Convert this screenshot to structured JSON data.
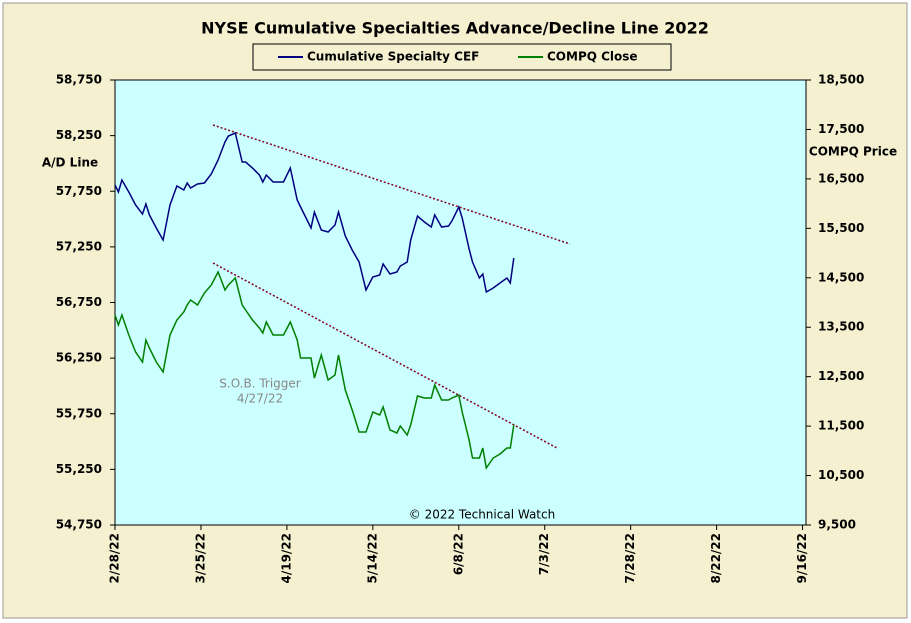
{
  "chart_data": {
    "type": "line",
    "title": "NYSE Cumulative  Specialties  Advance/Decline  Line  2022",
    "y_label": "A/D Line",
    "y2_label": "COMPQ Price",
    "annotations": [
      "S.O.B. Trigger",
      "4/27/22",
      "© 2022 Technical Watch"
    ],
    "x": [
      "2022-02-28",
      "2022-03-01",
      "2022-03-02",
      "2022-03-04",
      "2022-03-06",
      "2022-03-08",
      "2022-03-09",
      "2022-03-10",
      "2022-03-12",
      "2022-03-14",
      "2022-03-16",
      "2022-03-18",
      "2022-03-20",
      "2022-03-21",
      "2022-03-22",
      "2022-03-24",
      "2022-03-26",
      "2022-03-28",
      "2022-03-30",
      "2022-04-01",
      "2022-04-02",
      "2022-04-04",
      "2022-04-06",
      "2022-04-07",
      "2022-04-09",
      "2022-04-11",
      "2022-04-12",
      "2022-04-13",
      "2022-04-15",
      "2022-04-18",
      "2022-04-20",
      "2022-04-22",
      "2022-04-23",
      "2022-04-26",
      "2022-04-27",
      "2022-04-29",
      "2022-05-01",
      "2022-05-03",
      "2022-05-04",
      "2022-05-06",
      "2022-05-08",
      "2022-05-10",
      "2022-05-12",
      "2022-05-14",
      "2022-05-16",
      "2022-05-17",
      "2022-05-19",
      "2022-05-21",
      "2022-05-22",
      "2022-05-24",
      "2022-05-25",
      "2022-05-27",
      "2022-05-29",
      "2022-05-31",
      "2022-06-01",
      "2022-06-03",
      "2022-06-05",
      "2022-06-06",
      "2022-06-08",
      "2022-06-09",
      "2022-06-11",
      "2022-06-12",
      "2022-06-14",
      "2022-06-15",
      "2022-06-16",
      "2022-06-18",
      "2022-06-20",
      "2022-06-22",
      "2022-06-23",
      "2022-06-24"
    ],
    "series": [
      {
        "name": "Cumulative Specialty CEF",
        "color": "#000080",
        "axis": "y",
        "values": [
          57806,
          57743,
          57851,
          57743,
          57626,
          57545,
          57635,
          57537,
          57420,
          57312,
          57626,
          57797,
          57761,
          57824,
          57779,
          57815,
          57824,
          57905,
          58031,
          58193,
          58247,
          58274,
          58013,
          58013,
          57959,
          57896,
          57833,
          57896,
          57833,
          57833,
          57959,
          57671,
          57608,
          57420,
          57563,
          57402,
          57384,
          57447,
          57563,
          57348,
          57222,
          57114,
          56862,
          56979,
          56997,
          57096,
          57006,
          57024,
          57078,
          57114,
          57312,
          57527,
          57474,
          57429,
          57537,
          57429,
          57438,
          57483,
          57608,
          57510,
          57231,
          57114,
          56970,
          57006,
          56844,
          56880,
          56925,
          56970,
          56925,
          57150
        ]
      },
      {
        "name": "COMPQ Close",
        "color": "#008000",
        "axis": "y2",
        "values": [
          13747,
          13545,
          13747,
          13343,
          12999,
          12797,
          13242,
          13080,
          12797,
          12594,
          13343,
          13646,
          13808,
          13949,
          14050,
          13949,
          14192,
          14354,
          14617,
          14253,
          14354,
          14495,
          13949,
          13848,
          13646,
          13484,
          13383,
          13606,
          13343,
          13343,
          13606,
          13242,
          12877,
          12877,
          12473,
          12938,
          12432,
          12534,
          12938,
          12230,
          11826,
          11381,
          11381,
          11785,
          11725,
          11886,
          11421,
          11361,
          11502,
          11320,
          11522,
          12109,
          12068,
          12068,
          12331,
          12028,
          12028,
          12068,
          12129,
          11785,
          11219,
          10855,
          10855,
          11057,
          10653,
          10855,
          10936,
          11057,
          11057,
          11522
        ]
      }
    ],
    "xlim": [
      "2022-02-28",
      "2022-09-17"
    ],
    "xticks": [
      {
        "value": "2022-02-28",
        "label": "2/28/22"
      },
      {
        "value": "2022-03-25",
        "label": "3/25/22"
      },
      {
        "value": "2022-04-19",
        "label": "4/19/22"
      },
      {
        "value": "2022-05-14",
        "label": "5/14/22"
      },
      {
        "value": "2022-06-08",
        "label": "6/8/22"
      },
      {
        "value": "2022-07-03",
        "label": "7/3/22"
      },
      {
        "value": "2022-07-28",
        "label": "7/28/22"
      },
      {
        "value": "2022-08-22",
        "label": "8/22/22"
      },
      {
        "value": "2022-09-16",
        "label": "9/16/22"
      }
    ],
    "ylim": [
      54750,
      58750
    ],
    "yticks": [
      {
        "value": 54750,
        "label": "54,750"
      },
      {
        "value": 55250,
        "label": "55,250"
      },
      {
        "value": 55750,
        "label": "55,750"
      },
      {
        "value": 56250,
        "label": "56,250"
      },
      {
        "value": 56750,
        "label": "56,750"
      },
      {
        "value": 57250,
        "label": "57,250"
      },
      {
        "value": 57750,
        "label": "57,750"
      },
      {
        "value": 58250,
        "label": "58,250"
      },
      {
        "value": 58750,
        "label": "58,750"
      }
    ],
    "y2lim": [
      9500,
      18500
    ],
    "y2ticks": [
      {
        "value": 9500,
        "label": "9,500"
      },
      {
        "value": 10500,
        "label": "10,500"
      },
      {
        "value": 11500,
        "label": "11,500"
      },
      {
        "value": 12500,
        "label": "12,500"
      },
      {
        "value": 13500,
        "label": "13,500"
      },
      {
        "value": 14500,
        "label": "14,500"
      },
      {
        "value": 15500,
        "label": "15,500"
      },
      {
        "value": 16500,
        "label": "16,500"
      },
      {
        "value": 17500,
        "label": "17,500"
      },
      {
        "value": 18500,
        "label": "18,500"
      }
    ],
    "grid": false
  }
}
